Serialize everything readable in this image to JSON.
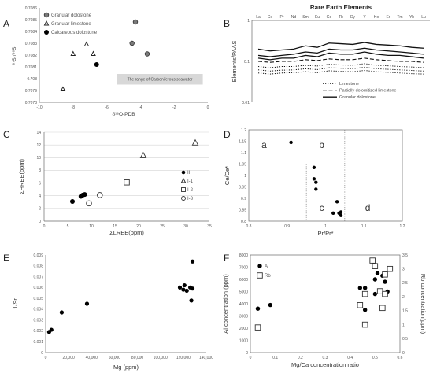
{
  "panel_labels": [
    "A",
    "B",
    "C",
    "D",
    "E",
    "F"
  ],
  "chart_data": [
    {
      "panel": "A",
      "type": "scatter",
      "xlabel": "δ¹⁸O-PDB",
      "ylabel": "⁸⁷Sr/⁸⁶Sr",
      "xlim": [
        -10,
        0
      ],
      "ylim": [
        0.7078,
        0.7086
      ],
      "x_ticks": [
        "-10",
        "-8",
        "-6",
        "-4",
        "-2",
        "0"
      ],
      "y_ticks": [
        "0.7078",
        "0.7079",
        "0.708",
        "0.7081",
        "0.7082",
        "0.7083",
        "0.7084",
        "0.7085",
        "0.7086"
      ],
      "band_text": "The range of Carboniferous seawater",
      "band_range": [
        0.70795,
        0.70804
      ],
      "legend": [
        {
          "label": "Granular dolostone",
          "marker": "gray-filled-circle"
        },
        {
          "label": "Granular limestone",
          "marker": "triangle"
        },
        {
          "label": "Calcareous dolostone",
          "marker": "black-circle"
        }
      ],
      "series": [
        {
          "name": "Granular dolostone",
          "x": [
            -4.3,
            -4.5,
            -3.6
          ],
          "y": [
            0.70848,
            0.7083,
            0.70821
          ]
        },
        {
          "name": "Granular limestone",
          "x": [
            -8.6,
            -8.0,
            -7.2,
            -6.8
          ],
          "y": [
            0.70791,
            0.70821,
            0.70829,
            0.70821
          ]
        },
        {
          "name": "Calcareous dolostone",
          "x": [
            -6.6
          ],
          "y": [
            0.70812
          ]
        }
      ]
    },
    {
      "panel": "B",
      "type": "line",
      "title": "Rare Earth Elements",
      "ylabel": "Elements/PAAS",
      "categories": [
        "La",
        "Ce",
        "Pr",
        "Nd",
        "Sm",
        "Eu",
        "Gd",
        "Tb",
        "Dy",
        "Y",
        "Ho",
        "Er",
        "Tm",
        "Yb",
        "Lu"
      ],
      "y_scale": "log",
      "ylim": [
        0.01,
        1
      ],
      "y_ticks": [
        "1",
        "0.1",
        "0.01"
      ],
      "legend_position": "bottom-right",
      "series": [
        {
          "name": "Granular dolostone",
          "style": "solid",
          "values": [
            0.2,
            0.18,
            0.19,
            0.2,
            0.24,
            0.22,
            0.28,
            0.27,
            0.26,
            0.29,
            0.26,
            0.25,
            0.24,
            0.22,
            0.21
          ]
        },
        {
          "name": "Granular dolostone",
          "style": "solid",
          "values": [
            0.14,
            0.13,
            0.14,
            0.15,
            0.17,
            0.16,
            0.2,
            0.19,
            0.19,
            0.21,
            0.19,
            0.18,
            0.17,
            0.16,
            0.15
          ]
        },
        {
          "name": "Granular dolostone",
          "style": "solid",
          "values": [
            0.12,
            0.11,
            0.12,
            0.12,
            0.14,
            0.13,
            0.16,
            0.15,
            0.15,
            0.17,
            0.15,
            0.14,
            0.14,
            0.13,
            0.12
          ]
        },
        {
          "name": "Partially dolomitized limestone",
          "style": "dashed",
          "values": [
            0.1,
            0.095,
            0.1,
            0.1,
            0.11,
            0.105,
            0.115,
            0.11,
            0.11,
            0.12,
            0.11,
            0.105,
            0.1,
            0.1,
            0.095
          ]
        },
        {
          "name": "Limestone",
          "style": "dotted",
          "values": [
            0.075,
            0.07,
            0.075,
            0.075,
            0.08,
            0.077,
            0.085,
            0.082,
            0.08,
            0.088,
            0.08,
            0.078,
            0.075,
            0.073,
            0.07
          ]
        },
        {
          "name": "Limestone",
          "style": "dotted",
          "values": [
            0.062,
            0.058,
            0.061,
            0.062,
            0.066,
            0.063,
            0.07,
            0.068,
            0.066,
            0.072,
            0.066,
            0.064,
            0.062,
            0.06,
            0.058
          ]
        },
        {
          "name": "Limestone",
          "style": "dotted",
          "values": [
            0.052,
            0.049,
            0.052,
            0.053,
            0.056,
            0.053,
            0.059,
            0.057,
            0.056,
            0.06,
            0.056,
            0.054,
            0.052,
            0.05,
            0.049
          ]
        }
      ],
      "legend": [
        {
          "label": "Limestone",
          "style": "dotted"
        },
        {
          "label": "Partially dolomitized limestone",
          "style": "dashed"
        },
        {
          "label": "Granular dolostone",
          "style": "solid"
        }
      ]
    },
    {
      "panel": "C",
      "type": "scatter",
      "xlabel": "ΣLREE(ppm)",
      "ylabel": "ΣHREE(ppm)",
      "xlim": [
        0,
        35
      ],
      "ylim": [
        0,
        14
      ],
      "x_ticks": [
        "0",
        "5",
        "10",
        "15",
        "20",
        "25",
        "30",
        "35"
      ],
      "y_ticks": [
        "0",
        "2",
        "4",
        "6",
        "8",
        "10",
        "12",
        "14"
      ],
      "grid": true,
      "legend": [
        {
          "label": "II",
          "marker": "black-circle"
        },
        {
          "label": "I-1",
          "marker": "triangle"
        },
        {
          "label": "I-2",
          "marker": "square"
        },
        {
          "label": "I-3",
          "marker": "circle"
        }
      ],
      "series": [
        {
          "name": "II",
          "x": [
            6.0,
            7.8,
            8.2,
            8.6
          ],
          "y": [
            3.1,
            3.9,
            4.1,
            4.2
          ]
        },
        {
          "name": "I-1",
          "x": [
            21.0,
            32.0
          ],
          "y": [
            10.3,
            12.3
          ]
        },
        {
          "name": "I-2",
          "x": [
            17.5
          ],
          "y": [
            6.1
          ]
        },
        {
          "name": "I-3",
          "x": [
            9.5,
            11.8
          ],
          "y": [
            2.8,
            4.1
          ]
        }
      ]
    },
    {
      "panel": "D",
      "type": "scatter",
      "xlabel": "Pr/Pr*",
      "ylabel": "Ce/Ce*",
      "xlim": [
        0.8,
        1.2
      ],
      "ylim": [
        0.8,
        1.2
      ],
      "x_ticks": [
        "0.8",
        "0.9",
        "1",
        "1.1",
        "1.2"
      ],
      "y_ticks": [
        "0.8",
        "0.85",
        "0.9",
        "0.95",
        "1",
        "1.05",
        "1.1",
        "1.15",
        "1.2"
      ],
      "regions": [
        "a",
        "b",
        "c",
        "d"
      ],
      "divider_x": [
        0.95,
        1.05
      ],
      "divider_y": [
        0.95,
        1.05
      ],
      "series": [
        {
          "name": "",
          "x": [
            0.91,
            0.97,
            0.97,
            0.975,
            0.975,
            1.02,
            1.03,
            1.035,
            1.04,
            1.04
          ],
          "y": [
            1.145,
            1.035,
            0.985,
            0.97,
            0.94,
            0.835,
            0.885,
            0.835,
            0.825,
            0.84
          ]
        }
      ]
    },
    {
      "panel": "E",
      "type": "scatter",
      "xlabel": "Mg (ppm)",
      "ylabel": "1/Sr",
      "xlim": [
        0,
        140000
      ],
      "ylim": [
        0,
        0.009
      ],
      "x_ticks": [
        "0",
        "20,000",
        "40,000",
        "60,000",
        "80,000",
        "100,000",
        "120,000",
        "140,000"
      ],
      "y_ticks": [
        "0",
        "0.001",
        "0.002",
        "0.003",
        "0.004",
        "0.005",
        "0.006",
        "0.007",
        "0.008",
        "0.009"
      ],
      "series": [
        {
          "name": "",
          "x": [
            3000,
            5000,
            14000,
            36000,
            117000,
            120000,
            121000,
            123000,
            126000,
            127000,
            128000,
            128000
          ],
          "y": [
            0.0019,
            0.0021,
            0.0037,
            0.0045,
            0.006,
            0.0058,
            0.0062,
            0.0057,
            0.006,
            0.0048,
            0.0084,
            0.0059
          ]
        }
      ]
    },
    {
      "panel": "F",
      "type": "scatter",
      "xlabel": "Mg/Ca concentration ratio",
      "ylabel": "Al concentration (ppm)",
      "y2label": "Rb concentration(ppm)",
      "xlim": [
        0,
        0.6
      ],
      "ylim": [
        0,
        8000
      ],
      "y2lim": [
        0,
        3.5
      ],
      "x_ticks": [
        "0",
        "0.1",
        "0.2",
        "0.3",
        "0.4",
        "0.5",
        "0.6"
      ],
      "y_ticks": [
        "0",
        "1000",
        "2000",
        "3000",
        "4000",
        "5000",
        "6000",
        "7000",
        "8000"
      ],
      "y2_ticks": [
        "0",
        "0.5",
        "1",
        "1.5",
        "2",
        "2.5",
        "3",
        "3.5"
      ],
      "legend": [
        {
          "label": "Al",
          "marker": "black-circle"
        },
        {
          "label": "Rb",
          "marker": "square"
        }
      ],
      "series": [
        {
          "name": "Al",
          "axis": "left",
          "x": [
            0.03,
            0.08,
            0.44,
            0.46,
            0.46,
            0.5,
            0.5,
            0.51,
            0.53,
            0.54,
            0.55
          ],
          "y": [
            3600,
            3900,
            5300,
            5300,
            3500,
            4800,
            6000,
            6500,
            6300,
            5800,
            5000
          ]
        },
        {
          "name": "Rb",
          "axis": "right",
          "x": [
            0.03,
            0.44,
            0.46,
            0.46,
            0.49,
            0.5,
            0.52,
            0.53,
            0.54,
            0.54,
            0.56
          ],
          "y": [
            0.9,
            1.7,
            2.1,
            1.0,
            3.3,
            3.1,
            2.2,
            1.6,
            2.1,
            2.8,
            3.0
          ]
        }
      ]
    }
  ]
}
